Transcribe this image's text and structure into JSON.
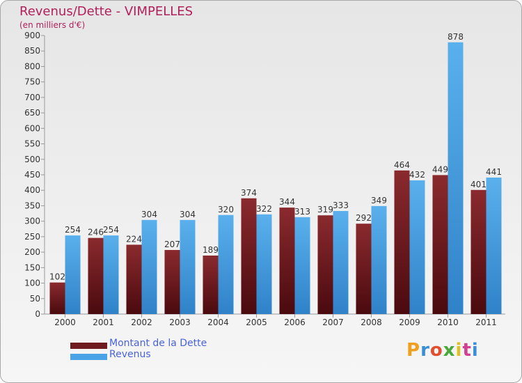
{
  "chart_data": {
    "type": "bar",
    "title": "Revenus/Dette - VIMPELLES",
    "subtitle": "(en milliers d'€)",
    "categories": [
      "2000",
      "2001",
      "2002",
      "2003",
      "2004",
      "2005",
      "2006",
      "2007",
      "2008",
      "2009",
      "2010",
      "2011"
    ],
    "series": [
      {
        "name": "Montant de la Dette",
        "color": "#6e1a1e",
        "values": [
          102,
          246,
          224,
          207,
          189,
          374,
          344,
          319,
          292,
          464,
          449,
          401
        ]
      },
      {
        "name": "Revenus",
        "color": "#4aa3e6",
        "values": [
          254,
          254,
          304,
          304,
          320,
          322,
          313,
          333,
          349,
          432,
          878,
          441
        ]
      }
    ],
    "ylim": [
      0,
      900
    ],
    "ytick_step": 50,
    "grid": false,
    "legend_position": "bottom-left"
  },
  "branding": {
    "logo_text": "Proxiti"
  }
}
